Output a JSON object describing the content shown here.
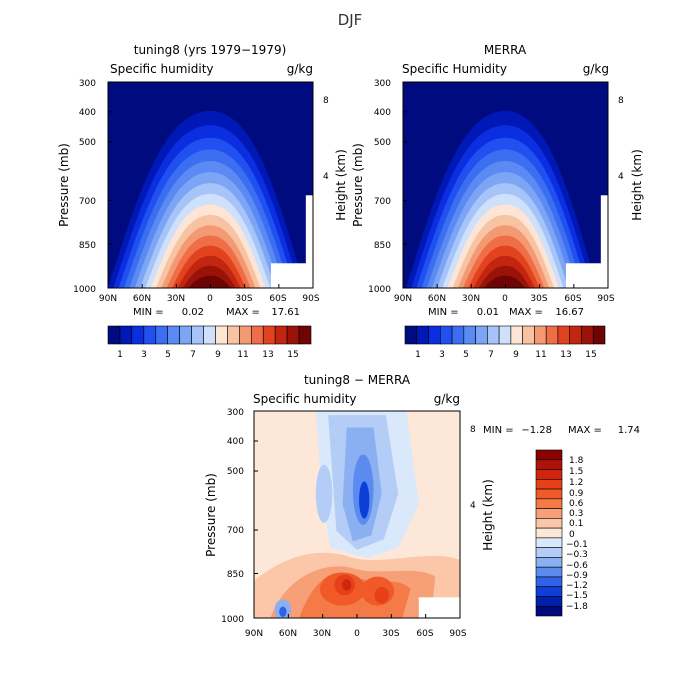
{
  "figure": {
    "title": "DJF"
  },
  "chart_data": [
    {
      "type": "heatmap",
      "title": "tuning8 (yrs 1979−1979)",
      "variable": "Specific humidity",
      "units": "g/kg",
      "ylabel": "Pressure (mb)",
      "ylabel_right": "Height (km)",
      "x_ticks": [
        "90N",
        "60N",
        "30N",
        "0",
        "30S",
        "60S",
        "90S"
      ],
      "y_ticks": [
        "300",
        "400",
        "500",
        "700",
        "850",
        "1000"
      ],
      "y_ticks_right": [
        "8",
        "4"
      ],
      "stats": {
        "min_label": "MIN =",
        "min": "0.02",
        "max_label": "MAX =",
        "max": "17.61"
      },
      "colorbar_labels": [
        "1",
        "3",
        "5",
        "7",
        "9",
        "11",
        "13",
        "15"
      ],
      "colors": [
        "#000b80",
        "#0018b5",
        "#0a2ee0",
        "#2050f0",
        "#3b6ef0",
        "#5a8af2",
        "#7ca6f5",
        "#a6c4f7",
        "#cfe0fa",
        "#fde5d6",
        "#f8c3a3",
        "#f49a73",
        "#ef6e47",
        "#e2431f",
        "#c32610",
        "#9b1208",
        "#6e0404"
      ],
      "peak_value": 17.61,
      "ylim": [
        1000,
        300
      ],
      "xlim": [
        "90N",
        "90S"
      ]
    },
    {
      "type": "heatmap",
      "title": "MERRA",
      "variable": "Specific Humidity",
      "units": "g/kg",
      "ylabel": "Pressure (mb)",
      "ylabel_right": "Height (km)",
      "x_ticks": [
        "90N",
        "60N",
        "30N",
        "0",
        "30S",
        "60S",
        "90S"
      ],
      "y_ticks": [
        "300",
        "400",
        "500",
        "700",
        "850",
        "1000"
      ],
      "y_ticks_right": [
        "8",
        "4"
      ],
      "stats": {
        "min_label": "MIN =",
        "min": "0.01",
        "max_label": "MAX =",
        "max": "16.67"
      },
      "colorbar_labels": [
        "1",
        "3",
        "5",
        "7",
        "9",
        "11",
        "13",
        "15"
      ],
      "colors": [
        "#000b80",
        "#0018b5",
        "#0a2ee0",
        "#2050f0",
        "#3b6ef0",
        "#5a8af2",
        "#7ca6f5",
        "#a6c4f7",
        "#cfe0fa",
        "#fde5d6",
        "#f8c3a3",
        "#f49a73",
        "#ef6e47",
        "#e2431f",
        "#c32610",
        "#9b1208",
        "#6e0404"
      ],
      "peak_value": 16.67,
      "ylim": [
        1000,
        300
      ],
      "xlim": [
        "90N",
        "90S"
      ]
    },
    {
      "type": "heatmap",
      "title": "tuning8 − MERRA",
      "variable": "Specific humidity",
      "units": "g/kg",
      "ylabel": "Pressure (mb)",
      "ylabel_right": "Height (km)",
      "x_ticks": [
        "90N",
        "60N",
        "30N",
        "0",
        "30S",
        "60S",
        "90S"
      ],
      "y_ticks": [
        "300",
        "400",
        "500",
        "700",
        "850",
        "1000"
      ],
      "y_ticks_right": [
        "8",
        "4"
      ],
      "stats": {
        "min_label": "MIN =",
        "min": "−1.28",
        "max_label": "MAX =",
        "max": "1.74"
      },
      "colorbar_labels": [
        "1.8",
        "1.5",
        "1.2",
        "0.9",
        "0.6",
        "0.3",
        "0.1",
        "0",
        "−0.1",
        "−0.3",
        "−0.6",
        "−0.9",
        "−1.2",
        "−1.5",
        "−1.8"
      ],
      "colors": [
        "#8b0000",
        "#b01208",
        "#d0260e",
        "#e64018",
        "#f05a28",
        "#f47a48",
        "#f79f76",
        "#fbc7a8",
        "#fde7d9",
        "#d9e8fb",
        "#b3cdf6",
        "#8ab0f2",
        "#5b8bee",
        "#2f62e8",
        "#0d3fd8",
        "#0021ab",
        "#000a7a"
      ],
      "ylim": [
        1000,
        300
      ],
      "xlim": [
        "90N",
        "90S"
      ]
    }
  ]
}
